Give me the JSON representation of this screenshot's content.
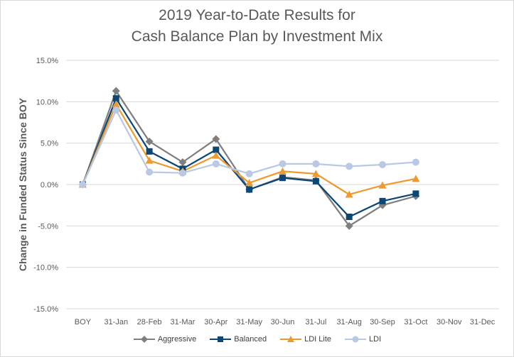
{
  "title_line1": "2019 Year-to-Date Results for",
  "title_line2": "Cash Balance Plan by Investment Mix",
  "chart_data": {
    "type": "line",
    "title": "2019 Year-to-Date Results for Cash Balance Plan by Investment Mix",
    "xlabel": "",
    "ylabel": "Change in Funded Status Since BOY",
    "categories": [
      "BOY",
      "31-Jan",
      "28-Feb",
      "31-Mar",
      "30-Apr",
      "31-May",
      "30-Jun",
      "31-Jul",
      "31-Aug",
      "30-Sep",
      "31-Oct",
      "30-Nov",
      "31-Dec"
    ],
    "ylim": [
      -15,
      15
    ],
    "yticks": [
      15,
      10,
      5,
      0,
      -5,
      -10,
      -15
    ],
    "ytick_labels": [
      "15.0%",
      "10.0%",
      "5.0%",
      "0.0%",
      "-5.0%",
      "-10.0%",
      "-15.0%"
    ],
    "grid": "horizontal",
    "legend_position": "bottom",
    "series": [
      {
        "name": "Aggressive",
        "color": "#7f7f7f",
        "marker": "diamond",
        "values": [
          0.0,
          11.3,
          5.2,
          2.7,
          5.5,
          -0.6,
          0.9,
          0.5,
          -5.0,
          -2.5,
          -1.4,
          null,
          null
        ]
      },
      {
        "name": "Balanced",
        "color": "#0b4774",
        "marker": "square",
        "values": [
          0.0,
          10.4,
          4.0,
          1.9,
          4.2,
          -0.6,
          0.8,
          0.4,
          -3.9,
          -2.0,
          -1.1,
          null,
          null
        ]
      },
      {
        "name": "LDI Lite",
        "color": "#ed9a2f",
        "marker": "triangle",
        "values": [
          0.0,
          9.7,
          2.9,
          1.6,
          3.5,
          0.2,
          1.6,
          1.3,
          -1.2,
          -0.1,
          0.7,
          null,
          null
        ]
      },
      {
        "name": "LDI",
        "color": "#b9c8e3",
        "marker": "circle",
        "values": [
          0.0,
          9.0,
          1.5,
          1.4,
          2.5,
          1.3,
          2.5,
          2.5,
          2.2,
          2.4,
          2.7,
          null,
          null
        ]
      }
    ]
  }
}
